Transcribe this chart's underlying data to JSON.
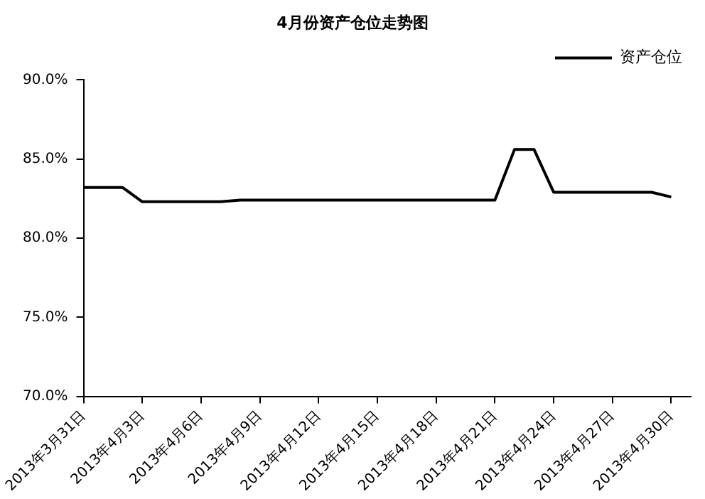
{
  "chart_data": {
    "type": "line",
    "title": "4月份资产仓位走势图",
    "x": [
      "2013-03-31",
      "2013-04-02",
      "2013-04-03",
      "2013-04-07",
      "2013-04-08",
      "2013-04-21",
      "2013-04-22",
      "2013-04-23",
      "2013-04-24",
      "2013-04-29",
      "2013-04-30"
    ],
    "series": [
      {
        "name": "资产仓位",
        "color": "#000000",
        "values": [
          83.2,
          83.2,
          82.3,
          82.3,
          82.4,
          82.4,
          85.6,
          85.6,
          82.9,
          82.9,
          82.6
        ]
      }
    ],
    "xlim": [
      "2013-03-31",
      "2013-05-01"
    ],
    "xticks": [
      {
        "value": "2013-03-31",
        "label": "2013年3月31日"
      },
      {
        "value": "2013-04-03",
        "label": "2013年4月3日"
      },
      {
        "value": "2013-04-06",
        "label": "2013年4月6日"
      },
      {
        "value": "2013-04-09",
        "label": "2013年4月9日"
      },
      {
        "value": "2013-04-12",
        "label": "2013年4月12日"
      },
      {
        "value": "2013-04-15",
        "label": "2013年4月15日"
      },
      {
        "value": "2013-04-18",
        "label": "2013年4月18日"
      },
      {
        "value": "2013-04-21",
        "label": "2013年4月21日"
      },
      {
        "value": "2013-04-24",
        "label": "2013年4月24日"
      },
      {
        "value": "2013-04-27",
        "label": "2013年4月27日"
      },
      {
        "value": "2013-04-30",
        "label": "2013年4月30日"
      }
    ],
    "ylim": [
      70,
      90
    ],
    "yticks": [
      {
        "value": 70,
        "label": "70.0%"
      },
      {
        "value": 75,
        "label": "75.0%"
      },
      {
        "value": 80,
        "label": "80.0%"
      },
      {
        "value": 85,
        "label": "85.0%"
      },
      {
        "value": 90,
        "label": "90.0%"
      }
    ],
    "grid": false,
    "legend": "top right"
  }
}
